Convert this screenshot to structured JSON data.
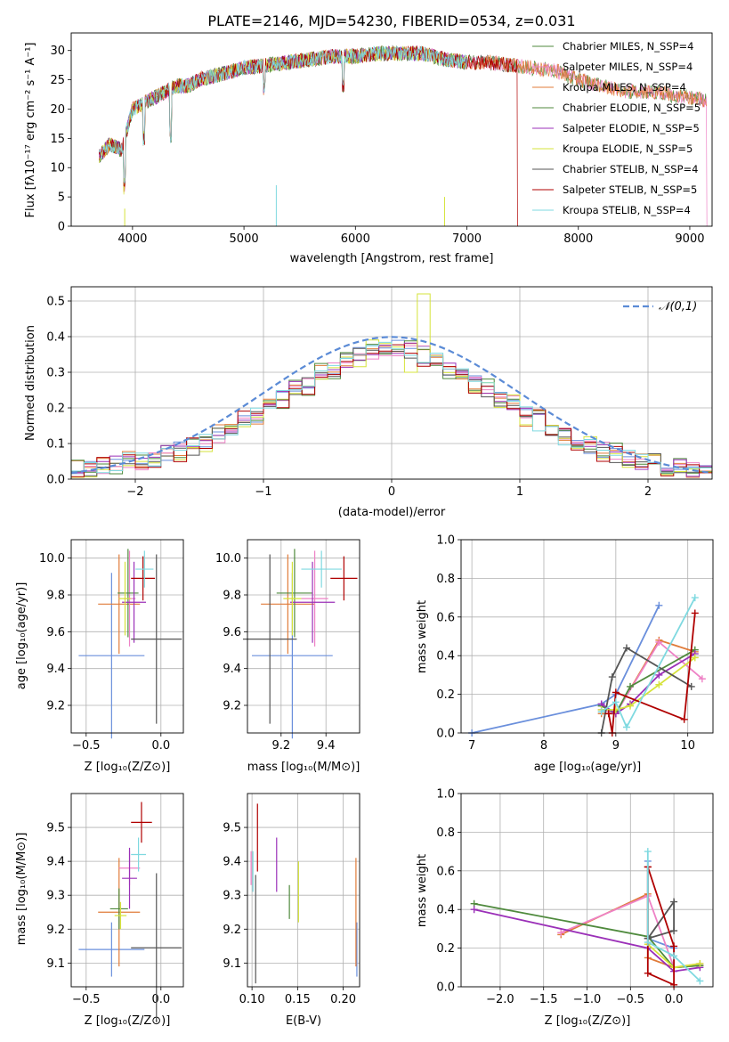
{
  "colors": [
    "#6a8fdc",
    "#e07b39",
    "#ee82c6",
    "#4f8a3d",
    "#9b30b8",
    "#d6e33b",
    "#555555",
    "#b00000",
    "#7fd9e0"
  ],
  "chart_data": [
    {
      "type": "line",
      "title": "PLATE=2146, MJD=54230, FIBERID=0534, z=0.031",
      "xlabel": "wavelength [Angstrom, rest frame]",
      "ylabel": "Flux [fλ10⁻¹⁷ erg cm⁻² s⁻¹ A⁻¹]",
      "xlim": [
        3450,
        9200
      ],
      "ylim": [
        0,
        33
      ],
      "xticks": [
        4000,
        5000,
        6000,
        7000,
        8000,
        9000
      ],
      "yticks": [
        0,
        5,
        10,
        15,
        20,
        25,
        30
      ],
      "legend": "top-right",
      "series_names": [
        "Chabrier MILES, N_SSP=4",
        "Salpeter MILES, N_SSP=4",
        "Kroupa MILES, N_SSP=4",
        "Chabrier ELODIE, N_SSP=5",
        "Salpeter ELODIE, N_SSP=5",
        "Kroupa ELODIE, N_SSP=5",
        "Chabrier STELIB, N_SSP=4",
        "Salpeter STELIB, N_SSP=5",
        "Kroupa STELIB, N_SSP=4"
      ],
      "series_colors": [
        "#4f8a3d",
        "#ee82c6",
        "#e07b39",
        "#4f8a3d",
        "#9b30b8",
        "#d6e33b",
        "#555555",
        "#b00000",
        "#7fd9e0"
      ],
      "x": [
        3700,
        3800,
        3900,
        4000,
        4100,
        4200,
        4300,
        4400,
        4500,
        4600,
        4800,
        5000,
        5200,
        5400,
        5600,
        5800,
        6000,
        6200,
        6400,
        6600,
        6800,
        7000,
        7200,
        7400,
        7600,
        7800,
        8000,
        8200,
        8400,
        8600,
        8800,
        9000,
        9150
      ],
      "y": [
        12,
        14,
        13,
        20,
        21,
        22,
        23,
        24,
        24,
        25,
        26,
        27,
        27.5,
        28,
        28.5,
        29,
        29,
        29.5,
        29.5,
        29.5,
        28.5,
        28,
        28,
        27.5,
        27,
        26.5,
        25,
        24,
        23,
        23,
        22.5,
        22,
        21.5
      ]
    },
    {
      "type": "bar",
      "xlabel": "(data-model)/error",
      "ylabel": "Normed distribution",
      "xlim": [
        -2.5,
        2.5
      ],
      "ylim": [
        0,
        0.54
      ],
      "xticks": [
        -2,
        -1,
        0,
        1,
        2
      ],
      "yticks": [
        0.0,
        0.1,
        0.2,
        0.3,
        0.4,
        0.5
      ],
      "legend": "top-right",
      "legend_label": "𝒩(0,1)",
      "bin_width": 0.1,
      "series": [
        {
          "values": [
            0.02,
            0.03,
            0.03,
            0.04,
            0.05,
            0.05,
            0.06,
            0.07,
            0.08,
            0.09,
            0.11,
            0.12,
            0.14,
            0.16,
            0.18,
            0.21,
            0.23,
            0.25,
            0.27,
            0.29,
            0.31,
            0.33,
            0.35,
            0.36,
            0.37,
            0.38,
            0.39,
            0.4,
            0.4,
            0.4,
            0.4,
            0.4,
            0.39,
            0.38,
            0.37,
            0.36,
            0.35,
            0.33,
            0.31,
            0.29,
            0.27,
            0.25,
            0.23,
            0.21,
            0.18,
            0.16,
            0.14,
            0.12,
            0.11,
            0.09
          ]
        },
        {
          "values": [
            0.03,
            0.02,
            0.04,
            0.03,
            0.06,
            0.05,
            0.05,
            0.08,
            0.07,
            0.1,
            0.1,
            0.13,
            0.13,
            0.17,
            0.17,
            0.22,
            0.22,
            0.26,
            0.26,
            0.3,
            0.3,
            0.34,
            0.34,
            0.37,
            0.36,
            0.39,
            0.38,
            0.41,
            0.39,
            0.42,
            0.39,
            0.41,
            0.38,
            0.39,
            0.36,
            0.37,
            0.34,
            0.34,
            0.3,
            0.3,
            0.26,
            0.26,
            0.22,
            0.22,
            0.17,
            0.17,
            0.13,
            0.13,
            0.1,
            0.1
          ]
        }
      ],
      "normal_curve": {
        "mean": 0,
        "std": 1
      }
    },
    {
      "type": "scatter",
      "xlabel": "Z [log₁₀(Z/Z⊙)]",
      "ylabel": "age  [log₁₀(age/yr)]",
      "xlim": [
        -0.6,
        0.15
      ],
      "ylim": [
        9.05,
        10.1
      ],
      "xticks": [
        -0.5,
        0.0
      ],
      "yticks": [
        9.2,
        9.4,
        9.6,
        9.8,
        10.0
      ],
      "points": [
        {
          "x": -0.33,
          "y": 9.47,
          "xerr": 0.22,
          "yerr": 0.45
        },
        {
          "x": -0.28,
          "y": 9.75,
          "xerr": 0.14,
          "yerr": 0.27
        },
        {
          "x": -0.21,
          "y": 9.78,
          "xerr": 0.04,
          "yerr": 0.26
        },
        {
          "x": -0.22,
          "y": 9.81,
          "xerr": 0.07,
          "yerr": 0.24
        },
        {
          "x": -0.18,
          "y": 9.76,
          "xerr": 0.08,
          "yerr": 0.22
        },
        {
          "x": -0.24,
          "y": 9.78,
          "xerr": 0.04,
          "yerr": 0.2
        },
        {
          "x": -0.03,
          "y": 9.56,
          "xerr": 0.17,
          "yerr": 0.46
        },
        {
          "x": -0.12,
          "y": 9.89,
          "xerr": 0.08,
          "yerr": 0.12
        },
        {
          "x": -0.11,
          "y": 9.94,
          "xerr": 0.06,
          "yerr": 0.1
        }
      ]
    },
    {
      "type": "scatter",
      "xlabel": "mass [log₁₀(M/M⊙)]",
      "ylabel": "",
      "xlim": [
        9.05,
        9.55
      ],
      "ylim": [
        9.05,
        10.1
      ],
      "xticks": [
        9.2,
        9.4
      ],
      "yticks": [
        9.2,
        9.4,
        9.6,
        9.8,
        10.0
      ],
      "points": [
        {
          "x": 9.25,
          "y": 9.47,
          "xerr": 0.18,
          "yerr": 0.45
        },
        {
          "x": 9.23,
          "y": 9.75,
          "xerr": 0.12,
          "yerr": 0.27
        },
        {
          "x": 9.35,
          "y": 9.78,
          "xerr": 0.06,
          "yerr": 0.26
        },
        {
          "x": 9.26,
          "y": 9.81,
          "xerr": 0.08,
          "yerr": 0.24
        },
        {
          "x": 9.34,
          "y": 9.76,
          "xerr": 0.1,
          "yerr": 0.22
        },
        {
          "x": 9.25,
          "y": 9.78,
          "xerr": 0.04,
          "yerr": 0.2
        },
        {
          "x": 9.15,
          "y": 9.56,
          "xerr": 0.12,
          "yerr": 0.46
        },
        {
          "x": 9.48,
          "y": 9.89,
          "xerr": 0.06,
          "yerr": 0.12
        },
        {
          "x": 9.38,
          "y": 9.94,
          "xerr": 0.09,
          "yerr": 0.1
        }
      ]
    },
    {
      "type": "line",
      "xlabel": "age  [log₁₀(age/yr)]",
      "ylabel": "mass weight",
      "xlim": [
        6.85,
        10.35
      ],
      "ylim": [
        0,
        1
      ],
      "xticks": [
        7,
        8,
        9,
        10
      ],
      "yticks": [
        0.0,
        0.2,
        0.4,
        0.6,
        0.8,
        1.0
      ],
      "series": [
        {
          "x": [
            7.0,
            8.8,
            9.0,
            9.6
          ],
          "y": [
            0.0,
            0.15,
            0.2,
            0.66
          ]
        },
        {
          "x": [
            8.8,
            9.0,
            9.6,
            10.1
          ],
          "y": [
            0.1,
            0.1,
            0.48,
            0.42
          ]
        },
        {
          "x": [
            8.8,
            9.0,
            9.6,
            10.2
          ],
          "y": [
            0.12,
            0.1,
            0.47,
            0.28
          ]
        },
        {
          "x": [
            8.8,
            9.0,
            9.2,
            10.1
          ],
          "y": [
            0.14,
            0.1,
            0.24,
            0.43
          ]
        },
        {
          "x": [
            8.8,
            9.0,
            9.2,
            9.6,
            10.1
          ],
          "y": [
            0.15,
            0.1,
            0.15,
            0.3,
            0.41
          ]
        },
        {
          "x": [
            8.8,
            9.0,
            9.2,
            9.6,
            10.1
          ],
          "y": [
            0.12,
            0.12,
            0.14,
            0.25,
            0.39
          ]
        },
        {
          "x": [
            8.8,
            8.95,
            9.15,
            10.05
          ],
          "y": [
            0.0,
            0.29,
            0.44,
            0.24
          ]
        },
        {
          "x": [
            8.9,
            8.95,
            9.0,
            9.95,
            10.1
          ],
          "y": [
            0.1,
            0.0,
            0.21,
            0.07,
            0.62
          ]
        },
        {
          "x": [
            8.8,
            9.0,
            9.15,
            10.1
          ],
          "y": [
            0.11,
            0.16,
            0.03,
            0.7
          ]
        }
      ]
    },
    {
      "type": "scatter",
      "xlabel": "Z [log₁₀(Z/Z⊙)]",
      "ylabel": "mass [log₁₀(M/M⊙)]",
      "xlim": [
        -0.6,
        0.15
      ],
      "ylim": [
        9.03,
        9.6
      ],
      "xticks": [
        -0.5,
        0.0
      ],
      "yticks": [
        9.1,
        9.2,
        9.3,
        9.4,
        9.5
      ],
      "points": [
        {
          "x": -0.33,
          "y": 9.14,
          "xerr": 0.22,
          "yerr": 0.08
        },
        {
          "x": -0.28,
          "y": 9.25,
          "xerr": 0.14,
          "yerr": 0.16
        },
        {
          "x": -0.21,
          "y": 9.38,
          "xerr": 0.07,
          "yerr": 0.05
        },
        {
          "x": -0.28,
          "y": 9.26,
          "xerr": 0.06,
          "yerr": 0.06
        },
        {
          "x": -0.21,
          "y": 9.35,
          "xerr": 0.05,
          "yerr": 0.09
        },
        {
          "x": -0.27,
          "y": 9.24,
          "xerr": 0.04,
          "yerr": 0.04
        },
        {
          "x": -0.03,
          "y": 9.145,
          "xerr": 0.17,
          "yerr": 0.22
        },
        {
          "x": -0.13,
          "y": 9.515,
          "xerr": 0.07,
          "yerr": 0.06
        },
        {
          "x": -0.15,
          "y": 9.42,
          "xerr": 0.05,
          "yerr": 0.05
        }
      ]
    },
    {
      "type": "scatter",
      "xlabel": "E(B-V)",
      "ylabel": "",
      "xlim": [
        0.095,
        0.218
      ],
      "ylim": [
        9.03,
        9.6
      ],
      "xticks": [
        0.1,
        0.15,
        0.2
      ],
      "yticks": [
        9.1,
        9.2,
        9.3,
        9.4,
        9.5
      ],
      "points": [
        {
          "x": 0.215,
          "y": 9.14,
          "xerr": 0,
          "yerr": 0.08
        },
        {
          "x": 0.214,
          "y": 9.25,
          "xerr": 0,
          "yerr": 0.16
        },
        {
          "x": 0.099,
          "y": 9.38,
          "xerr": 0,
          "yerr": 0.05
        },
        {
          "x": 0.141,
          "y": 9.28,
          "xerr": 0,
          "yerr": 0.05
        },
        {
          "x": 0.127,
          "y": 9.39,
          "xerr": 0,
          "yerr": 0.08
        },
        {
          "x": 0.151,
          "y": 9.31,
          "xerr": 0,
          "yerr": 0.09
        },
        {
          "x": 0.104,
          "y": 9.2,
          "xerr": 0,
          "yerr": 0.16
        },
        {
          "x": 0.106,
          "y": 9.47,
          "xerr": 0,
          "yerr": 0.1
        },
        {
          "x": 0.101,
          "y": 9.37,
          "xerr": 0,
          "yerr": 0.06
        }
      ]
    },
    {
      "type": "line",
      "xlabel": "Z [log₁₀(Z/Z⊙)]",
      "ylabel": "mass weight",
      "xlim": [
        -2.45,
        0.45
      ],
      "ylim": [
        0,
        1
      ],
      "xticks": [
        -2.0,
        -1.5,
        -1.0,
        -0.5,
        0.0
      ],
      "yticks": [
        0.0,
        0.2,
        0.4,
        0.6,
        0.8,
        1.0
      ],
      "series": [
        {
          "x": [
            -0.3,
            -0.3,
            0.0,
            0.0
          ],
          "y": [
            0.65,
            0.25,
            0.2,
            0.1
          ]
        },
        {
          "x": [
            -1.3,
            -0.3,
            -0.3,
            0.0,
            0.3
          ],
          "y": [
            0.27,
            0.48,
            0.15,
            0.1,
            0.11
          ]
        },
        {
          "x": [
            -1.3,
            -0.3,
            0.0,
            0.3
          ],
          "y": [
            0.28,
            0.47,
            0.1,
            0.12
          ]
        },
        {
          "x": [
            -2.3,
            -0.3,
            0.0,
            0.3
          ],
          "y": [
            0.43,
            0.26,
            0.1,
            0.11
          ]
        },
        {
          "x": [
            -2.3,
            -0.3,
            0.0,
            0.3
          ],
          "y": [
            0.4,
            0.2,
            0.08,
            0.1
          ]
        },
        {
          "x": [
            -0.3,
            0.0,
            0.3
          ],
          "y": [
            0.22,
            0.1,
            0.12
          ]
        },
        {
          "x": [
            -0.3,
            0.0,
            0.0,
            -0.3
          ],
          "y": [
            0.25,
            0.29,
            0.44,
            0.25
          ]
        },
        {
          "x": [
            -0.3,
            0.0,
            0.0,
            -0.3,
            -0.3
          ],
          "y": [
            0.62,
            0.21,
            0.01,
            0.07,
            0.62
          ]
        },
        {
          "x": [
            -0.3,
            -0.3,
            0.0,
            0.3
          ],
          "y": [
            0.7,
            0.23,
            0.16,
            0.03
          ]
        }
      ]
    }
  ]
}
